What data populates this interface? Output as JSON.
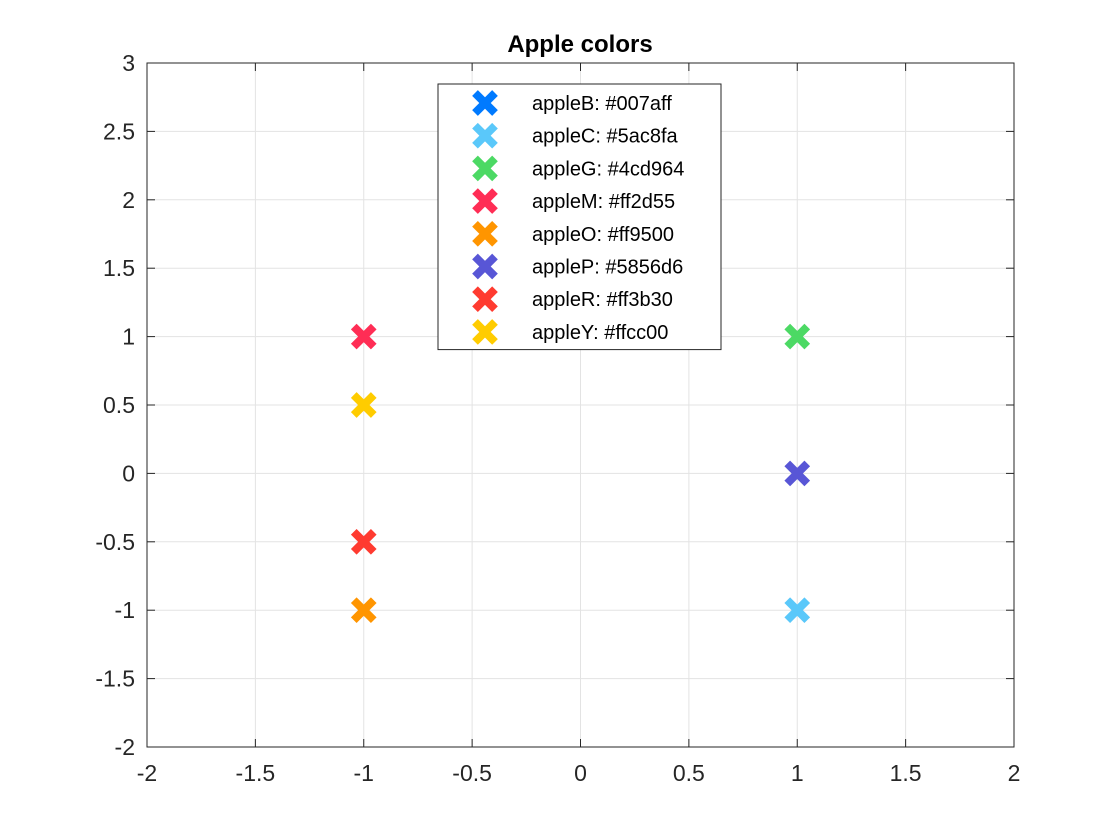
{
  "chart_data": {
    "type": "scatter",
    "title": "Apple colors",
    "xlabel": "",
    "ylabel": "",
    "xlim": [
      -2,
      2
    ],
    "ylim": [
      -2,
      3
    ],
    "xticks": [
      "-2",
      "-1.5",
      "-1",
      "-0.5",
      "0",
      "0.5",
      "1",
      "1.5",
      "2"
    ],
    "yticks": [
      "-2",
      "-1.5",
      "-1",
      "-0.5",
      "0",
      "0.5",
      "1",
      "1.5",
      "2",
      "2.5",
      "3"
    ],
    "grid": true,
    "legend_location": "top-center",
    "marker": "x",
    "series": [
      {
        "name": "appleB: #007aff",
        "color": "#007aff",
        "x": [],
        "y": []
      },
      {
        "name": "appleC: #5ac8fa",
        "color": "#5ac8fa",
        "x": [
          1
        ],
        "y": [
          -1
        ]
      },
      {
        "name": "appleG: #4cd964",
        "color": "#4cd964",
        "x": [
          1
        ],
        "y": [
          1
        ]
      },
      {
        "name": "appleM: #ff2d55",
        "color": "#ff2d55",
        "x": [
          -1
        ],
        "y": [
          1
        ]
      },
      {
        "name": "appleO: #ff9500",
        "color": "#ff9500",
        "x": [
          -1
        ],
        "y": [
          -1
        ]
      },
      {
        "name": "appleP: #5856d6",
        "color": "#5856d6",
        "x": [
          1
        ],
        "y": [
          0
        ]
      },
      {
        "name": "appleR: #ff3b30",
        "color": "#ff3b30",
        "x": [
          -1
        ],
        "y": [
          -0.5
        ]
      },
      {
        "name": "appleY: #ffcc00",
        "color": "#ffcc00",
        "x": [
          -1
        ],
        "y": [
          0.5
        ]
      }
    ]
  }
}
